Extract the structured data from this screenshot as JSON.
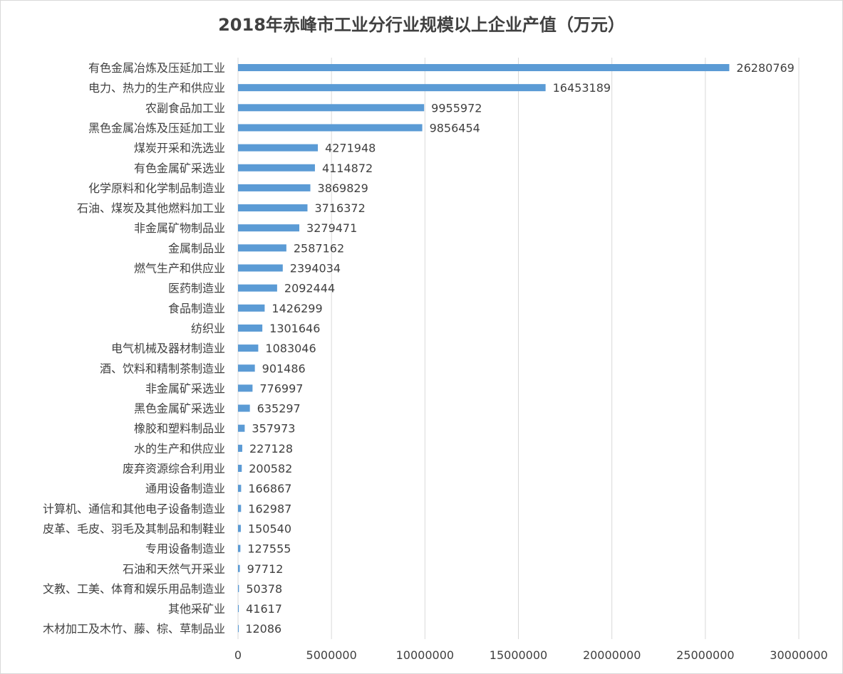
{
  "chart_data": {
    "type": "bar",
    "orientation": "horizontal",
    "title": "2018年赤峰市工业分行业规模以上企业产值（万元）",
    "categories": [
      "有色金属冶炼及压延加工业",
      "电力、热力的生产和供应业",
      "农副食品加工业",
      "黑色金属冶炼及压延加工业",
      "煤炭开采和洗选业",
      "有色金属矿采选业",
      "化学原料和化学制品制造业",
      "石油、煤炭及其他燃料加工业",
      "非金属矿物制品业",
      "金属制品业",
      "燃气生产和供应业",
      "医药制造业",
      "食品制造业",
      "纺织业",
      "电气机械及器材制造业",
      "酒、饮料和精制茶制造业",
      "非金属矿采选业",
      "黑色金属矿采选业",
      "橡胶和塑料制品业",
      "水的生产和供应业",
      "废弃资源综合利用业",
      "通用设备制造业",
      "计算机、通信和其他电子设备制造业",
      "皮革、毛皮、羽毛及其制品和制鞋业",
      "专用设备制造业",
      "石油和天然气开采业",
      "文教、工美、体育和娱乐用品制造业",
      "其他采矿业",
      "木材加工及木竹、藤、棕、草制品业"
    ],
    "values": [
      26280769,
      16453189,
      9955972,
      9856454,
      4271948,
      4114872,
      3869829,
      3716372,
      3279471,
      2587162,
      2394034,
      2092444,
      1426299,
      1301646,
      1083046,
      901486,
      776997,
      635297,
      357973,
      227128,
      200582,
      166867,
      162987,
      150540,
      127555,
      97712,
      50378,
      41617,
      12086
    ],
    "xlim": [
      0,
      30000000
    ],
    "xticks": [
      0,
      5000000,
      10000000,
      15000000,
      20000000,
      25000000,
      30000000
    ],
    "grid": "vertical",
    "legend": "none",
    "data_labels": true,
    "colors": {
      "bar": "#5b9bd5",
      "grid": "#d9d9d9",
      "text": "#404040"
    }
  }
}
